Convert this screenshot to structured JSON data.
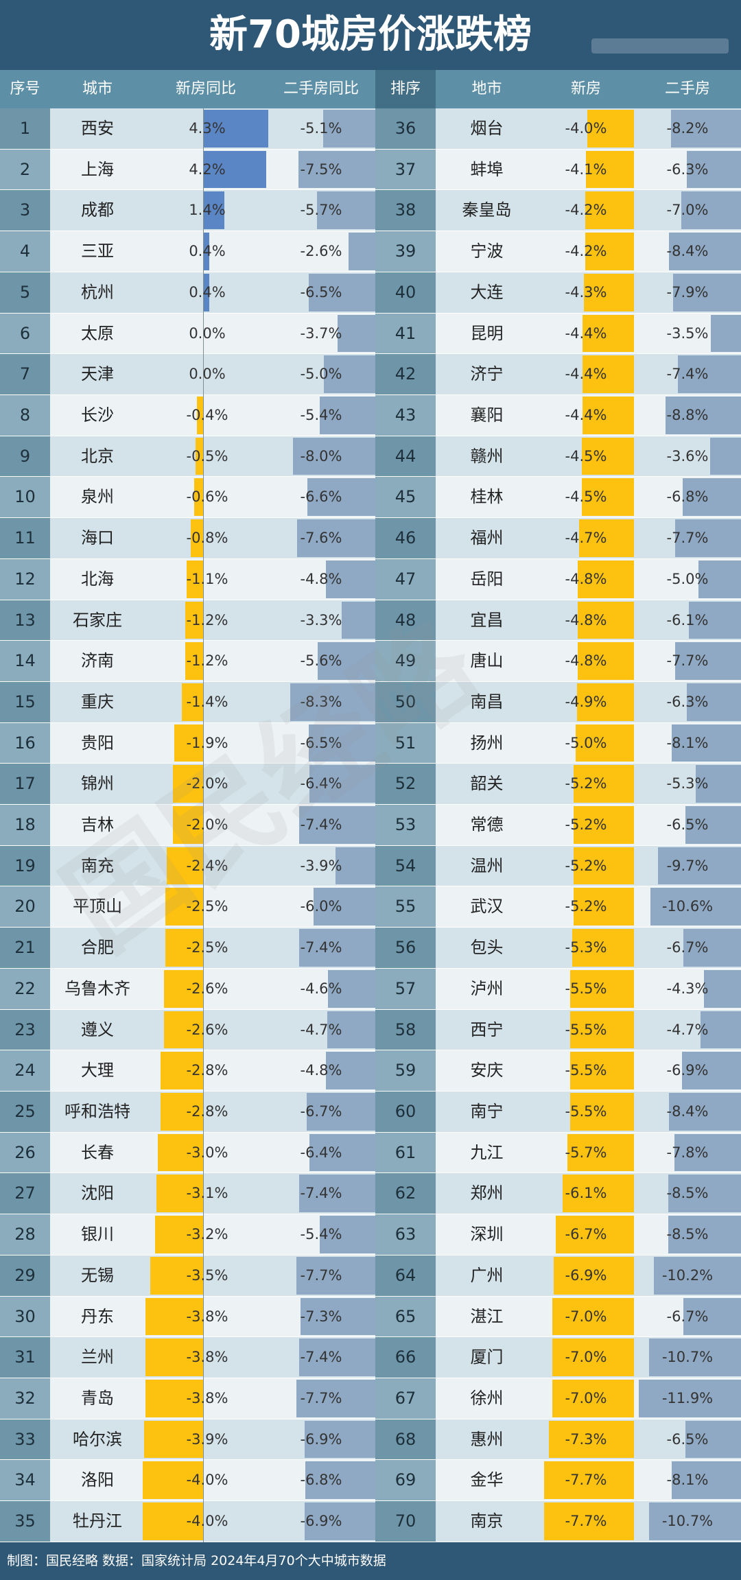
{
  "title": "新70城房价涨跌榜",
  "header": {
    "left": [
      "序号",
      "城市",
      "新房同比",
      "二手房同比"
    ],
    "right": [
      "排序",
      "地市",
      "新房",
      "二手房"
    ]
  },
  "colors": {
    "header_bg": "#2f5776",
    "new_home_up": "#5b86c6",
    "new_home_down": "#fdc10f",
    "second_hand": "#8fa9c4"
  },
  "watermark": "国民经略",
  "chart_data": {
    "type": "table",
    "title": "新70城房价涨跌榜",
    "columns": [
      "序号",
      "城市",
      "新房同比",
      "二手房同比"
    ],
    "rows": [
      {
        "rank": 1,
        "city": "西安",
        "new": 4.3,
        "second": -5.1
      },
      {
        "rank": 2,
        "city": "上海",
        "new": 4.2,
        "second": -7.5
      },
      {
        "rank": 3,
        "city": "成都",
        "new": 1.4,
        "second": -5.7
      },
      {
        "rank": 4,
        "city": "三亚",
        "new": 0.4,
        "second": -2.6
      },
      {
        "rank": 5,
        "city": "杭州",
        "new": 0.4,
        "second": -6.5
      },
      {
        "rank": 6,
        "city": "太原",
        "new": 0.0,
        "second": -3.7
      },
      {
        "rank": 7,
        "city": "天津",
        "new": 0.0,
        "second": -5.0
      },
      {
        "rank": 8,
        "city": "长沙",
        "new": -0.4,
        "second": -5.4
      },
      {
        "rank": 9,
        "city": "北京",
        "new": -0.5,
        "second": -8.0
      },
      {
        "rank": 10,
        "city": "泉州",
        "new": -0.6,
        "second": -6.6
      },
      {
        "rank": 11,
        "city": "海口",
        "new": -0.8,
        "second": -7.6
      },
      {
        "rank": 12,
        "city": "北海",
        "new": -1.1,
        "second": -4.8
      },
      {
        "rank": 13,
        "city": "石家庄",
        "new": -1.2,
        "second": -3.3
      },
      {
        "rank": 14,
        "city": "济南",
        "new": -1.2,
        "second": -5.6
      },
      {
        "rank": 15,
        "city": "重庆",
        "new": -1.4,
        "second": -8.3
      },
      {
        "rank": 16,
        "city": "贵阳",
        "new": -1.9,
        "second": -6.5
      },
      {
        "rank": 17,
        "city": "锦州",
        "new": -2.0,
        "second": -6.4
      },
      {
        "rank": 18,
        "city": "吉林",
        "new": -2.0,
        "second": -7.4
      },
      {
        "rank": 19,
        "city": "南充",
        "new": -2.4,
        "second": -3.9
      },
      {
        "rank": 20,
        "city": "平顶山",
        "new": -2.5,
        "second": -6.0
      },
      {
        "rank": 21,
        "city": "合肥",
        "new": -2.5,
        "second": -7.4
      },
      {
        "rank": 22,
        "city": "乌鲁木齐",
        "new": -2.6,
        "second": -4.6
      },
      {
        "rank": 23,
        "city": "遵义",
        "new": -2.6,
        "second": -4.7
      },
      {
        "rank": 24,
        "city": "大理",
        "new": -2.8,
        "second": -4.8
      },
      {
        "rank": 25,
        "city": "呼和浩特",
        "new": -2.8,
        "second": -6.7
      },
      {
        "rank": 26,
        "city": "长春",
        "new": -3.0,
        "second": -6.4
      },
      {
        "rank": 27,
        "city": "沈阳",
        "new": -3.1,
        "second": -7.4
      },
      {
        "rank": 28,
        "city": "银川",
        "new": -3.2,
        "second": -5.4
      },
      {
        "rank": 29,
        "city": "无锡",
        "new": -3.5,
        "second": -7.7
      },
      {
        "rank": 30,
        "city": "丹东",
        "new": -3.8,
        "second": -7.3
      },
      {
        "rank": 31,
        "city": "兰州",
        "new": -3.8,
        "second": -7.4
      },
      {
        "rank": 32,
        "city": "青岛",
        "new": -3.8,
        "second": -7.7
      },
      {
        "rank": 33,
        "city": "哈尔滨",
        "new": -3.9,
        "second": -6.9
      },
      {
        "rank": 34,
        "city": "洛阳",
        "new": -4.0,
        "second": -6.8
      },
      {
        "rank": 35,
        "city": "牡丹江",
        "new": -4.0,
        "second": -6.9
      },
      {
        "rank": 36,
        "city": "烟台",
        "new": -4.0,
        "second": -8.2
      },
      {
        "rank": 37,
        "city": "蚌埠",
        "new": -4.1,
        "second": -6.3
      },
      {
        "rank": 38,
        "city": "秦皇岛",
        "new": -4.2,
        "second": -7.0
      },
      {
        "rank": 39,
        "city": "宁波",
        "new": -4.2,
        "second": -8.4
      },
      {
        "rank": 40,
        "city": "大连",
        "new": -4.3,
        "second": -7.9
      },
      {
        "rank": 41,
        "city": "昆明",
        "new": -4.4,
        "second": -3.5
      },
      {
        "rank": 42,
        "city": "济宁",
        "new": -4.4,
        "second": -7.4
      },
      {
        "rank": 43,
        "city": "襄阳",
        "new": -4.4,
        "second": -8.8
      },
      {
        "rank": 44,
        "city": "赣州",
        "new": -4.5,
        "second": -3.6
      },
      {
        "rank": 45,
        "city": "桂林",
        "new": -4.5,
        "second": -6.8
      },
      {
        "rank": 46,
        "city": "福州",
        "new": -4.7,
        "second": -7.7
      },
      {
        "rank": 47,
        "city": "岳阳",
        "new": -4.8,
        "second": -5.0
      },
      {
        "rank": 48,
        "city": "宜昌",
        "new": -4.8,
        "second": -6.1
      },
      {
        "rank": 49,
        "city": "唐山",
        "new": -4.8,
        "second": -7.7
      },
      {
        "rank": 50,
        "city": "南昌",
        "new": -4.9,
        "second": -6.3
      },
      {
        "rank": 51,
        "city": "扬州",
        "new": -5.0,
        "second": -8.1
      },
      {
        "rank": 52,
        "city": "韶关",
        "new": -5.2,
        "second": -5.3
      },
      {
        "rank": 53,
        "city": "常德",
        "new": -5.2,
        "second": -6.5
      },
      {
        "rank": 54,
        "city": "温州",
        "new": -5.2,
        "second": -9.7
      },
      {
        "rank": 55,
        "city": "武汉",
        "new": -5.2,
        "second": -10.6
      },
      {
        "rank": 56,
        "city": "包头",
        "new": -5.3,
        "second": -6.7
      },
      {
        "rank": 57,
        "city": "泸州",
        "new": -5.5,
        "second": -4.3
      },
      {
        "rank": 58,
        "city": "西宁",
        "new": -5.5,
        "second": -4.7
      },
      {
        "rank": 59,
        "city": "安庆",
        "new": -5.5,
        "second": -6.9
      },
      {
        "rank": 60,
        "city": "南宁",
        "new": -5.5,
        "second": -8.4
      },
      {
        "rank": 61,
        "city": "九江",
        "new": -5.7,
        "second": -7.8
      },
      {
        "rank": 62,
        "city": "郑州",
        "new": -6.1,
        "second": -8.5
      },
      {
        "rank": 63,
        "city": "深圳",
        "new": -6.7,
        "second": -8.5
      },
      {
        "rank": 64,
        "city": "广州",
        "new": -6.9,
        "second": -10.2
      },
      {
        "rank": 65,
        "city": "湛江",
        "new": -7.0,
        "second": -6.7
      },
      {
        "rank": 66,
        "city": "厦门",
        "new": -7.0,
        "second": -10.7
      },
      {
        "rank": 67,
        "city": "徐州",
        "new": -7.0,
        "second": -11.9
      },
      {
        "rank": 68,
        "city": "惠州",
        "new": -7.3,
        "second": -6.5
      },
      {
        "rank": 69,
        "city": "金华",
        "new": -7.7,
        "second": -8.1
      },
      {
        "rank": 70,
        "city": "南京",
        "new": -7.7,
        "second": -10.7
      }
    ]
  },
  "footer": "制图：国民经略 数据：国家统计局 2024年4月70个大中城市数据"
}
